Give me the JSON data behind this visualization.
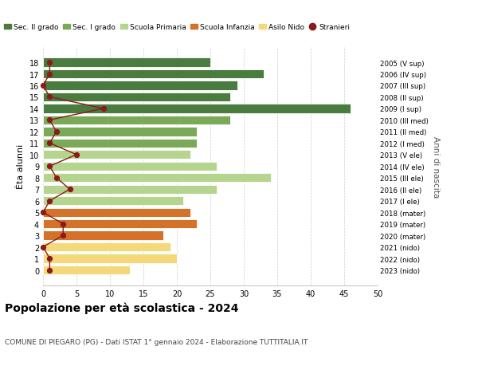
{
  "ages": [
    18,
    17,
    16,
    15,
    14,
    13,
    12,
    11,
    10,
    9,
    8,
    7,
    6,
    5,
    4,
    3,
    2,
    1,
    0
  ],
  "right_labels": [
    "2005 (V sup)",
    "2006 (IV sup)",
    "2007 (III sup)",
    "2008 (II sup)",
    "2009 (I sup)",
    "2010 (III med)",
    "2011 (II med)",
    "2012 (I med)",
    "2013 (V ele)",
    "2014 (IV ele)",
    "2015 (III ele)",
    "2016 (II ele)",
    "2017 (I ele)",
    "2018 (mater)",
    "2019 (mater)",
    "2020 (mater)",
    "2021 (nido)",
    "2022 (nido)",
    "2023 (nido)"
  ],
  "bar_values": [
    25,
    33,
    29,
    28,
    46,
    28,
    23,
    23,
    22,
    26,
    34,
    26,
    21,
    22,
    23,
    18,
    19,
    20,
    13
  ],
  "bar_colors": [
    "#4a7c3f",
    "#4a7c3f",
    "#4a7c3f",
    "#4a7c3f",
    "#4a7c3f",
    "#7aaa58",
    "#7aaa58",
    "#7aaa58",
    "#b5d48e",
    "#b5d48e",
    "#b5d48e",
    "#b5d48e",
    "#b5d48e",
    "#d4722a",
    "#d4722a",
    "#d4722a",
    "#f5d87a",
    "#f5d87a",
    "#f5d87a"
  ],
  "dot_values": [
    1,
    1,
    0,
    1,
    9,
    1,
    2,
    1,
    5,
    1,
    2,
    4,
    1,
    0,
    3,
    3,
    0,
    1,
    1
  ],
  "dot_color": "#8b1a1a",
  "xlim": [
    0,
    50
  ],
  "xticks": [
    0,
    5,
    10,
    15,
    20,
    25,
    30,
    35,
    40,
    45,
    50
  ],
  "ylabel_left": "Èta alunni",
  "ylabel_right": "Anni di nascita",
  "title": "Popolazione per età scolastica - 2024",
  "subtitle": "COMUNE DI PIEGARO (PG) - Dati ISTAT 1° gennaio 2024 - Elaborazione TUTTITALIA.IT",
  "legend_entries": [
    {
      "label": "Sec. II grado",
      "color": "#4a7c3f"
    },
    {
      "label": "Sec. I grado",
      "color": "#7aaa58"
    },
    {
      "label": "Scuola Primaria",
      "color": "#b5d48e"
    },
    {
      "label": "Scuola Infanzia",
      "color": "#d4722a"
    },
    {
      "label": "Asilo Nido",
      "color": "#f5d87a"
    },
    {
      "label": "Stranieri",
      "color": "#8b1a1a"
    }
  ],
  "bg_color": "#ffffff",
  "grid_color": "#cccccc",
  "bar_height": 0.78
}
